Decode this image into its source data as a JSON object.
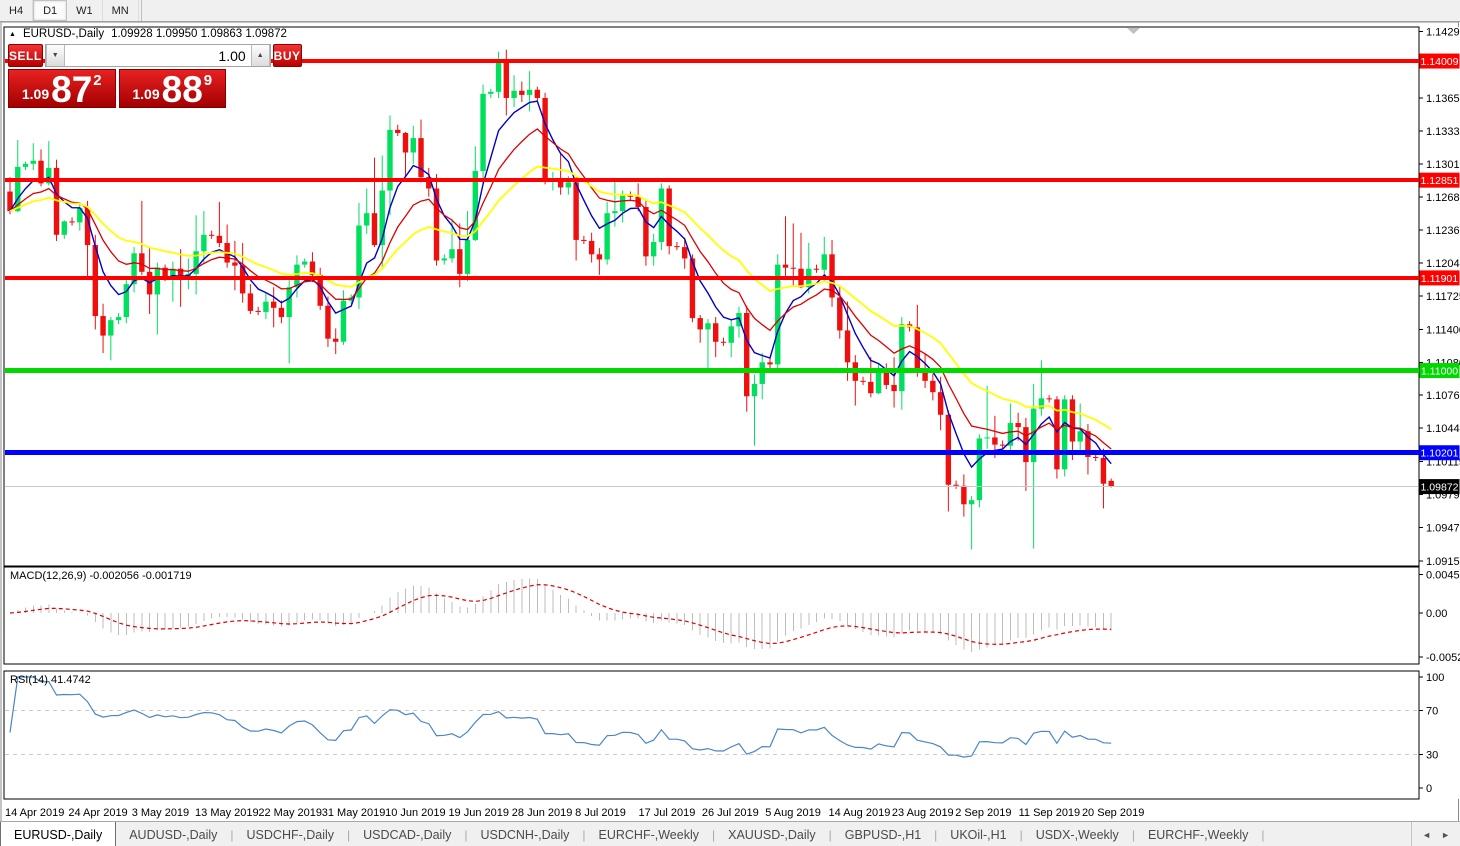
{
  "toolbar": {
    "timeframes": [
      {
        "label": "H4",
        "active": false
      },
      {
        "label": "D1",
        "active": true
      },
      {
        "label": "W1",
        "active": false
      },
      {
        "label": "MN",
        "active": false
      }
    ]
  },
  "header": {
    "collapse_icon": "▲",
    "symbol_label": "EURUSD-,Daily",
    "ohlc": "1.09928 1.09950 1.09863 1.09872"
  },
  "trade_panel": {
    "sell_label": "SELL",
    "buy_label": "BUY",
    "volume": "1.00",
    "spin_down_icon": "▼",
    "spin_up_icon": "▲",
    "sell_price": {
      "prefix": "1.09",
      "big": "87",
      "sup": "2"
    },
    "buy_price": {
      "prefix": "1.09",
      "big": "88",
      "sup": "9"
    }
  },
  "colors": {
    "bull": "#00e05e",
    "bear": "#ee0f0f",
    "panel_bg": "#ffffff",
    "frame": "#000000",
    "toolbar_bg": "#f0f0f0",
    "current_price_line": "#c8c8c8"
  },
  "chart_data": {
    "type": "candlestick",
    "title": "EURUSD-,Daily",
    "grid": "off",
    "ylim": [
      1.091,
      1.1434
    ],
    "y_ticks": [
      "1.14295",
      "1.13975",
      "1.13650",
      "1.13330",
      "1.13010",
      "1.12685",
      "1.12365",
      "1.12045",
      "1.11725",
      "1.11400",
      "1.11080",
      "1.10760",
      "1.10440",
      "1.10115",
      "1.09795",
      "1.09475",
      "1.09150"
    ],
    "x_labels": [
      "14 Apr 2019",
      "24 Apr 2019",
      "3 May 2019",
      "13 May 2019",
      "22 May 2019",
      "31 May 2019",
      "10 Jun 2019",
      "19 Jun 2019",
      "28 Jun 2019",
      "8 Jul 2019",
      "17 Jul 2019",
      "26 Jul 2019",
      "5 Aug 2019",
      "14 Aug 2019",
      "23 Aug 2019",
      "2 Sep 2019",
      "11 Sep 2019",
      "20 Sep 2019"
    ],
    "candles": [
      [
        1.1274,
        1.1288,
        1.1252,
        1.1255
      ],
      [
        1.1255,
        1.1324,
        1.1254,
        1.1298
      ],
      [
        1.1298,
        1.1303,
        1.1295,
        1.1301
      ],
      [
        1.1301,
        1.1321,
        1.1295,
        1.1304
      ],
      [
        1.1304,
        1.1315,
        1.1279,
        1.1282
      ],
      [
        1.1282,
        1.1323,
        1.128,
        1.1297
      ],
      [
        1.1297,
        1.1305,
        1.1226,
        1.1232
      ],
      [
        1.1232,
        1.1246,
        1.1228,
        1.1245
      ],
      [
        1.1245,
        1.1249,
        1.1241,
        1.1244
      ],
      [
        1.1244,
        1.1262,
        1.1236,
        1.1258
      ],
      [
        1.1258,
        1.1265,
        1.1192,
        1.1222
      ],
      [
        1.1222,
        1.1232,
        1.114,
        1.1153
      ],
      [
        1.1153,
        1.1165,
        1.1117,
        1.1134
      ],
      [
        1.1134,
        1.1152,
        1.111,
        1.1149
      ],
      [
        1.1149,
        1.1156,
        1.1145,
        1.1152
      ],
      [
        1.1152,
        1.1188,
        1.1146,
        1.1184
      ],
      [
        1.1184,
        1.122,
        1.1176,
        1.1214
      ],
      [
        1.1214,
        1.1265,
        1.1193,
        1.1196
      ],
      [
        1.1196,
        1.1219,
        1.1155,
        1.1174
      ],
      [
        1.1174,
        1.1205,
        1.1135,
        1.12
      ],
      [
        1.12,
        1.1203,
        1.1187,
        1.119
      ],
      [
        1.119,
        1.1206,
        1.1167,
        1.1199
      ],
      [
        1.1199,
        1.1218,
        1.1162,
        1.119
      ],
      [
        1.119,
        1.1209,
        1.1179,
        1.1194
      ],
      [
        1.1194,
        1.1251,
        1.1174,
        1.1216
      ],
      [
        1.1216,
        1.1255,
        1.1205,
        1.1232
      ],
      [
        1.1232,
        1.1236,
        1.1228,
        1.1231
      ],
      [
        1.1231,
        1.1264,
        1.122,
        1.1224
      ],
      [
        1.1224,
        1.1242,
        1.12,
        1.1205
      ],
      [
        1.1205,
        1.1226,
        1.1178,
        1.1202
      ],
      [
        1.1202,
        1.1224,
        1.1166,
        1.1175
      ],
      [
        1.1175,
        1.1184,
        1.1155,
        1.1158
      ],
      [
        1.1158,
        1.1162,
        1.1154,
        1.1157
      ],
      [
        1.1157,
        1.1176,
        1.115,
        1.1167
      ],
      [
        1.1167,
        1.1181,
        1.1142,
        1.1161
      ],
      [
        1.1161,
        1.1168,
        1.1146,
        1.1152
      ],
      [
        1.1152,
        1.1188,
        1.1107,
        1.1181
      ],
      [
        1.1181,
        1.1212,
        1.1171,
        1.1203
      ],
      [
        1.1203,
        1.1209,
        1.12,
        1.1206
      ],
      [
        1.1206,
        1.1215,
        1.1186,
        1.1193
      ],
      [
        1.1193,
        1.12,
        1.1159,
        1.1163
      ],
      [
        1.1163,
        1.1172,
        1.1123,
        1.1131
      ],
      [
        1.1131,
        1.1141,
        1.1116,
        1.1128
      ],
      [
        1.1128,
        1.1178,
        1.1125,
        1.1168
      ],
      [
        1.1168,
        1.1174,
        1.1165,
        1.1171
      ],
      [
        1.1171,
        1.1263,
        1.116,
        1.1241
      ],
      [
        1.1241,
        1.1277,
        1.1233,
        1.1253
      ],
      [
        1.1253,
        1.1307,
        1.122,
        1.1222
      ],
      [
        1.1222,
        1.1309,
        1.1201,
        1.1275
      ],
      [
        1.1275,
        1.1348,
        1.1251,
        1.1334
      ],
      [
        1.1334,
        1.1339,
        1.1328,
        1.1331
      ],
      [
        1.1331,
        1.1332,
        1.1289,
        1.1312
      ],
      [
        1.1312,
        1.1338,
        1.1301,
        1.1326
      ],
      [
        1.1326,
        1.1344,
        1.1283,
        1.1288
      ],
      [
        1.1288,
        1.1297,
        1.1269,
        1.1277
      ],
      [
        1.1277,
        1.1291,
        1.1202,
        1.1207
      ],
      [
        1.1207,
        1.1213,
        1.1203,
        1.1209
      ],
      [
        1.1209,
        1.1247,
        1.1205,
        1.1218
      ],
      [
        1.1218,
        1.1243,
        1.1181,
        1.1194
      ],
      [
        1.1194,
        1.1255,
        1.1187,
        1.1227
      ],
      [
        1.1227,
        1.1318,
        1.1226,
        1.1294
      ],
      [
        1.1294,
        1.1378,
        1.1282,
        1.1369
      ],
      [
        1.1369,
        1.1374,
        1.1365,
        1.1371
      ],
      [
        1.1371,
        1.141,
        1.1365,
        1.1399
      ],
      [
        1.1399,
        1.1412,
        1.1348,
        1.1365
      ],
      [
        1.1365,
        1.1387,
        1.1356,
        1.1372
      ],
      [
        1.1372,
        1.1381,
        1.1361,
        1.1368
      ],
      [
        1.1368,
        1.1391,
        1.1352,
        1.1373
      ],
      [
        1.1373,
        1.1376,
        1.1362,
        1.1365
      ],
      [
        1.1365,
        1.137,
        1.1281,
        1.1285
      ],
      [
        1.1285,
        1.1293,
        1.1275,
        1.1285
      ],
      [
        1.1285,
        1.1312,
        1.1271,
        1.1278
      ],
      [
        1.1278,
        1.1289,
        1.1271,
        1.1283
      ],
      [
        1.1283,
        1.1288,
        1.1207,
        1.1227
      ],
      [
        1.1227,
        1.1231,
        1.1223,
        1.1226
      ],
      [
        1.1226,
        1.1234,
        1.1205,
        1.1213
      ],
      [
        1.1213,
        1.1219,
        1.1193,
        1.1208
      ],
      [
        1.1208,
        1.1264,
        1.1203,
        1.1253
      ],
      [
        1.1253,
        1.1286,
        1.124,
        1.1255
      ],
      [
        1.1255,
        1.1275,
        1.1244,
        1.127
      ],
      [
        1.127,
        1.1274,
        1.1266,
        1.1269
      ],
      [
        1.1269,
        1.1282,
        1.1255,
        1.1259
      ],
      [
        1.1259,
        1.1266,
        1.1202,
        1.1211
      ],
      [
        1.1211,
        1.1233,
        1.1202,
        1.1225
      ],
      [
        1.1225,
        1.1282,
        1.1217,
        1.1277
      ],
      [
        1.1277,
        1.128,
        1.1213,
        1.1221
      ],
      [
        1.1221,
        1.1225,
        1.1217,
        1.122
      ],
      [
        1.122,
        1.1229,
        1.1199,
        1.1209
      ],
      [
        1.1209,
        1.1213,
        1.1147,
        1.1151
      ],
      [
        1.1151,
        1.1154,
        1.1127,
        1.114
      ],
      [
        1.114,
        1.115,
        1.1101,
        1.1146
      ],
      [
        1.1146,
        1.1152,
        1.1113,
        1.1128
      ],
      [
        1.1128,
        1.1132,
        1.1124,
        1.1127
      ],
      [
        1.1127,
        1.115,
        1.1113,
        1.1143
      ],
      [
        1.1143,
        1.1162,
        1.1132,
        1.1156
      ],
      [
        1.1156,
        1.1163,
        1.106,
        1.1075
      ],
      [
        1.1075,
        1.1096,
        1.1027,
        1.1087
      ],
      [
        1.1087,
        1.1117,
        1.1072,
        1.1108
      ],
      [
        1.1108,
        1.1112,
        1.1101,
        1.1106
      ],
      [
        1.1106,
        1.1213,
        1.1101,
        1.1203
      ],
      [
        1.1203,
        1.125,
        1.1192,
        1.12
      ],
      [
        1.12,
        1.1243,
        1.1183,
        1.1199
      ],
      [
        1.1199,
        1.1234,
        1.118,
        1.1181
      ],
      [
        1.1181,
        1.1224,
        1.1175,
        1.1199
      ],
      [
        1.1199,
        1.1203,
        1.1195,
        1.1198
      ],
      [
        1.1198,
        1.123,
        1.1186,
        1.1213
      ],
      [
        1.1213,
        1.1227,
        1.1162,
        1.1171
      ],
      [
        1.1171,
        1.1182,
        1.1131,
        1.1139
      ],
      [
        1.1139,
        1.1167,
        1.109,
        1.1108
      ],
      [
        1.1108,
        1.1115,
        1.1066,
        1.109
      ],
      [
        1.109,
        1.1094,
        1.1086,
        1.1089
      ],
      [
        1.1089,
        1.1113,
        1.1074,
        1.1078
      ],
      [
        1.1078,
        1.1107,
        1.1077,
        1.1099
      ],
      [
        1.1099,
        1.1107,
        1.1082,
        1.1086
      ],
      [
        1.1086,
        1.1113,
        1.1064,
        1.108
      ],
      [
        1.108,
        1.1152,
        1.1062,
        1.1145
      ],
      [
        1.1145,
        1.1148,
        1.1138,
        1.1142
      ],
      [
        1.1142,
        1.1164,
        1.1094,
        1.1101
      ],
      [
        1.1101,
        1.1116,
        1.1083,
        1.109
      ],
      [
        1.109,
        1.1097,
        1.1071,
        1.1079
      ],
      [
        1.1079,
        1.1094,
        1.1042,
        1.1057
      ],
      [
        1.1057,
        1.1061,
        1.0963,
        1.0989
      ],
      [
        1.0989,
        1.0993,
        1.0985,
        1.0988
      ],
      [
        1.0988,
        1.0999,
        1.0958,
        1.097
      ],
      [
        1.097,
        1.0978,
        1.0926,
        1.0974
      ],
      [
        1.0974,
        1.1038,
        1.0967,
        1.1034
      ],
      [
        1.1034,
        1.1085,
        1.1024,
        1.1035
      ],
      [
        1.1035,
        1.1056,
        1.1015,
        1.1028
      ],
      [
        1.1028,
        1.1032,
        1.1024,
        1.1027
      ],
      [
        1.1027,
        1.1068,
        1.1021,
        1.1049
      ],
      [
        1.1049,
        1.1059,
        1.1032,
        1.1045
      ],
      [
        1.1045,
        1.1054,
        1.0983,
        1.1011
      ],
      [
        1.1011,
        1.1087,
        1.0927,
        1.1063
      ],
      [
        1.1063,
        1.111,
        1.1056,
        1.1073
      ],
      [
        1.1073,
        1.1076,
        1.1069,
        1.1072
      ],
      [
        1.1072,
        1.1075,
        1.0995,
        1.1004
      ],
      [
        1.1004,
        1.1076,
        1.0997,
        1.1072
      ],
      [
        1.1072,
        1.1076,
        1.1013,
        1.1031
      ],
      [
        1.1031,
        1.1068,
        1.1023,
        1.1041
      ],
      [
        1.1041,
        1.1048,
        1.0999,
        1.1016
      ],
      [
        1.1016,
        1.1019,
        1.1012,
        1.1015
      ],
      [
        1.1015,
        1.1024,
        1.0966,
        1.099
      ],
      [
        1.09928,
        1.0995,
        1.09863,
        1.09872
      ]
    ],
    "moving_averages": [
      {
        "period": 6,
        "color": "#0000c8",
        "width": 1.4
      },
      {
        "period": 13,
        "color": "#dd0000",
        "width": 1.3
      },
      {
        "period": 26,
        "color": "#ffff00",
        "width": 1.8
      }
    ],
    "hlines": [
      {
        "value": 1.14009,
        "label": "1.14009",
        "color": "#ff0000",
        "width": 4
      },
      {
        "value": 1.12851,
        "label": "1.12851",
        "color": "#ff0000",
        "width": 4
      },
      {
        "value": 1.11901,
        "label": "1.11901",
        "color": "#ff0000",
        "width": 4
      },
      {
        "value": 1.11,
        "label": "1.11000",
        "color": "#00d800",
        "width": 5
      },
      {
        "value": 1.10201,
        "label": "1.10201",
        "color": "#0000ff",
        "width": 5
      }
    ],
    "current_price": {
      "value": 1.09872,
      "label": "1.09872",
      "line_color": "#c8c8c8",
      "badge_color": "#000000"
    },
    "macd": {
      "label": "MACD(12,26,9) -0.002056 -0.001719",
      "fast": 12,
      "slow": 26,
      "signal": 9,
      "value": -0.002056,
      "signal_value": -0.001719,
      "ticks": {
        "labels": [
          "0.004536",
          "0.00",
          "-0.005205"
        ],
        "values": [
          0.004536,
          0,
          -0.005205
        ]
      },
      "hist_color": "#bdbdbd",
      "signal_color": "#e00000"
    },
    "rsi": {
      "label": "RSI(14) 41.4742",
      "period": 14,
      "value": 41.4742,
      "levels": [
        70,
        30
      ],
      "ticks": [
        100,
        70,
        30,
        0
      ],
      "line_color": "#4a86c8",
      "level_color": "#c8c8c8"
    }
  },
  "tabs": {
    "scroll_left_icon": "◄",
    "scroll_right_icon": "►",
    "items": [
      {
        "label": "EURUSD-,Daily",
        "active": true
      },
      {
        "label": "AUDUSD-,Daily",
        "active": false
      },
      {
        "label": "USDCHF-,Daily",
        "active": false
      },
      {
        "label": "USDCAD-,Daily",
        "active": false
      },
      {
        "label": "USDCNH-,Daily",
        "active": false
      },
      {
        "label": "EURCHF-,Weekly",
        "active": false
      },
      {
        "label": "XAUUSD-,Daily",
        "active": false
      },
      {
        "label": "GBPUSD-,H1",
        "active": false
      },
      {
        "label": "UKOil-,H1",
        "active": false
      },
      {
        "label": "USDX-,Weekly",
        "active": false
      },
      {
        "label": "EURCHF-,Weekly",
        "active": false
      }
    ]
  }
}
